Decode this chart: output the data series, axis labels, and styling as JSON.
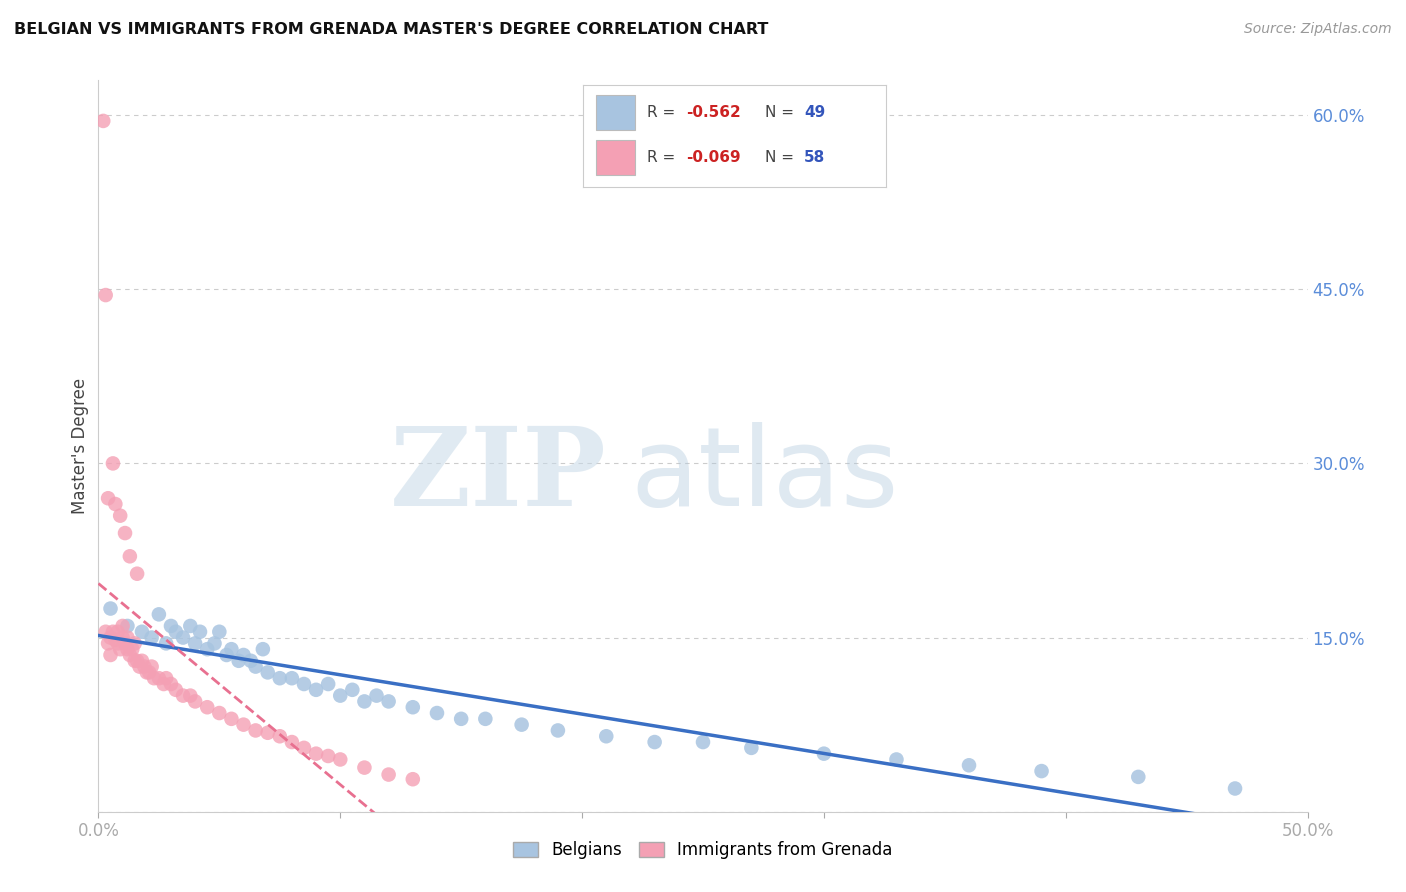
{
  "title": "BELGIAN VS IMMIGRANTS FROM GRENADA MASTER'S DEGREE CORRELATION CHART",
  "source": "Source: ZipAtlas.com",
  "ylabel": "Master's Degree",
  "xlim": [
    0.0,
    0.5
  ],
  "ylim": [
    0.0,
    0.63
  ],
  "ytick_positions": [
    0.0,
    0.15,
    0.3,
    0.45,
    0.6
  ],
  "ytick_labels": [
    "",
    "15.0%",
    "30.0%",
    "45.0%",
    "60.0%"
  ],
  "xtick_positions": [
    0.0,
    0.1,
    0.2,
    0.3,
    0.4,
    0.5
  ],
  "xtick_labels": [
    "0.0%",
    "",
    "",
    "",
    "",
    "50.0%"
  ],
  "blue_color": "#a8c4e0",
  "pink_color": "#f4a0b4",
  "blue_line_color": "#3a6fc4",
  "pink_line_color": "#e87090",
  "background_color": "#ffffff",
  "grid_color": "#cccccc",
  "legend_blue_r": "-0.562",
  "legend_blue_n": "49",
  "legend_pink_r": "-0.069",
  "legend_pink_n": "58",
  "blue_scatter_x": [
    0.005,
    0.012,
    0.018,
    0.022,
    0.025,
    0.028,
    0.03,
    0.032,
    0.035,
    0.038,
    0.04,
    0.042,
    0.045,
    0.048,
    0.05,
    0.053,
    0.055,
    0.058,
    0.06,
    0.063,
    0.065,
    0.068,
    0.07,
    0.075,
    0.08,
    0.085,
    0.09,
    0.095,
    0.1,
    0.105,
    0.11,
    0.115,
    0.12,
    0.13,
    0.14,
    0.15,
    0.16,
    0.175,
    0.19,
    0.21,
    0.23,
    0.25,
    0.27,
    0.3,
    0.33,
    0.36,
    0.39,
    0.43,
    0.47
  ],
  "blue_scatter_y": [
    0.175,
    0.16,
    0.155,
    0.15,
    0.17,
    0.145,
    0.16,
    0.155,
    0.15,
    0.16,
    0.145,
    0.155,
    0.14,
    0.145,
    0.155,
    0.135,
    0.14,
    0.13,
    0.135,
    0.13,
    0.125,
    0.14,
    0.12,
    0.115,
    0.115,
    0.11,
    0.105,
    0.11,
    0.1,
    0.105,
    0.095,
    0.1,
    0.095,
    0.09,
    0.085,
    0.08,
    0.08,
    0.075,
    0.07,
    0.065,
    0.06,
    0.06,
    0.055,
    0.05,
    0.045,
    0.04,
    0.035,
    0.03,
    0.02
  ],
  "pink_scatter_x": [
    0.002,
    0.003,
    0.004,
    0.005,
    0.005,
    0.006,
    0.007,
    0.008,
    0.008,
    0.009,
    0.01,
    0.01,
    0.011,
    0.012,
    0.012,
    0.013,
    0.014,
    0.015,
    0.015,
    0.016,
    0.017,
    0.018,
    0.019,
    0.02,
    0.021,
    0.022,
    0.023,
    0.025,
    0.027,
    0.028,
    0.03,
    0.032,
    0.035,
    0.038,
    0.04,
    0.045,
    0.05,
    0.055,
    0.06,
    0.065,
    0.07,
    0.075,
    0.08,
    0.085,
    0.09,
    0.095,
    0.1,
    0.11,
    0.12,
    0.13,
    0.003,
    0.004,
    0.006,
    0.007,
    0.009,
    0.011,
    0.013,
    0.016
  ],
  "pink_scatter_y": [
    0.595,
    0.155,
    0.145,
    0.15,
    0.135,
    0.155,
    0.148,
    0.145,
    0.155,
    0.14,
    0.15,
    0.16,
    0.145,
    0.14,
    0.15,
    0.135,
    0.14,
    0.13,
    0.145,
    0.13,
    0.125,
    0.13,
    0.125,
    0.12,
    0.12,
    0.125,
    0.115,
    0.115,
    0.11,
    0.115,
    0.11,
    0.105,
    0.1,
    0.1,
    0.095,
    0.09,
    0.085,
    0.08,
    0.075,
    0.07,
    0.068,
    0.065,
    0.06,
    0.055,
    0.05,
    0.048,
    0.045,
    0.038,
    0.032,
    0.028,
    0.445,
    0.27,
    0.3,
    0.265,
    0.255,
    0.24,
    0.22,
    0.205
  ]
}
